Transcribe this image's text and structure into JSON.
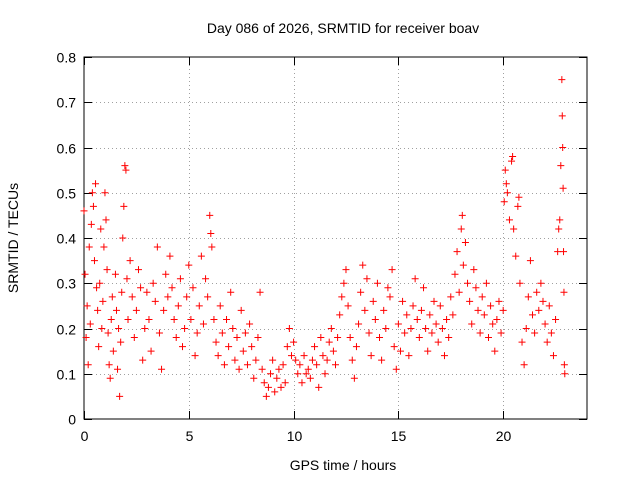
{
  "chart_data": {
    "type": "scatter",
    "title": "Day 086 of 2026, SRMTID for receiver boav",
    "xlabel": "GPS time / hours",
    "ylabel": "SRMTID / TECUs",
    "xlim": [
      0,
      24
    ],
    "ylim": [
      0,
      0.8
    ],
    "xticks": [
      0,
      5,
      10,
      15,
      20
    ],
    "yticks": [
      0,
      0.1,
      0.2,
      0.3,
      0.4,
      0.5,
      0.6,
      0.7,
      0.8
    ],
    "grid": true,
    "marker": "+",
    "color": "#ff0000",
    "series": [
      {
        "name": "SRMTID",
        "points": [
          [
            0.0,
            0.46
          ],
          [
            0.05,
            0.32
          ],
          [
            0.1,
            0.18
          ],
          [
            0.15,
            0.25
          ],
          [
            0.2,
            0.12
          ],
          [
            0.25,
            0.38
          ],
          [
            0.3,
            0.21
          ],
          [
            0.35,
            0.43
          ],
          [
            0.4,
            0.5
          ],
          [
            0.45,
            0.47
          ],
          [
            0.5,
            0.35
          ],
          [
            0.55,
            0.52
          ],
          [
            0.6,
            0.29
          ],
          [
            0.65,
            0.24
          ],
          [
            0.7,
            0.16
          ],
          [
            0.75,
            0.3
          ],
          [
            0.8,
            0.42
          ],
          [
            0.85,
            0.2
          ],
          [
            0.9,
            0.26
          ],
          [
            0.95,
            0.38
          ],
          [
            1.0,
            0.5
          ],
          [
            1.05,
            0.44
          ],
          [
            1.1,
            0.33
          ],
          [
            1.15,
            0.19
          ],
          [
            1.2,
            0.12
          ],
          [
            1.25,
            0.09
          ],
          [
            1.3,
            0.22
          ],
          [
            1.35,
            0.27
          ],
          [
            1.4,
            0.15
          ],
          [
            1.5,
            0.32
          ],
          [
            1.55,
            0.24
          ],
          [
            1.6,
            0.11
          ],
          [
            1.65,
            0.2
          ],
          [
            1.7,
            0.05
          ],
          [
            1.75,
            0.17
          ],
          [
            1.8,
            0.28
          ],
          [
            1.85,
            0.4
          ],
          [
            1.9,
            0.47
          ],
          [
            1.95,
            0.56
          ],
          [
            2.0,
            0.55
          ],
          [
            2.05,
            0.31
          ],
          [
            2.1,
            0.22
          ],
          [
            2.2,
            0.35
          ],
          [
            2.3,
            0.27
          ],
          [
            2.4,
            0.18
          ],
          [
            2.5,
            0.24
          ],
          [
            2.6,
            0.33
          ],
          [
            2.7,
            0.29
          ],
          [
            2.8,
            0.13
          ],
          [
            2.9,
            0.2
          ],
          [
            3.0,
            0.28
          ],
          [
            3.1,
            0.22
          ],
          [
            3.2,
            0.15
          ],
          [
            3.3,
            0.3
          ],
          [
            3.4,
            0.26
          ],
          [
            3.5,
            0.38
          ],
          [
            3.6,
            0.19
          ],
          [
            3.7,
            0.11
          ],
          [
            3.8,
            0.24
          ],
          [
            3.9,
            0.32
          ],
          [
            4.0,
            0.27
          ],
          [
            4.1,
            0.36
          ],
          [
            4.2,
            0.29
          ],
          [
            4.3,
            0.22
          ],
          [
            4.4,
            0.18
          ],
          [
            4.5,
            0.25
          ],
          [
            4.6,
            0.31
          ],
          [
            4.7,
            0.16
          ],
          [
            4.8,
            0.2
          ],
          [
            4.9,
            0.27
          ],
          [
            5.0,
            0.34
          ],
          [
            5.1,
            0.22
          ],
          [
            5.2,
            0.29
          ],
          [
            5.3,
            0.14
          ],
          [
            5.4,
            0.19
          ],
          [
            5.5,
            0.25
          ],
          [
            5.6,
            0.36
          ],
          [
            5.7,
            0.21
          ],
          [
            5.8,
            0.31
          ],
          [
            5.9,
            0.27
          ],
          [
            6.0,
            0.45
          ],
          [
            6.05,
            0.41
          ],
          [
            6.1,
            0.38
          ],
          [
            6.2,
            0.22
          ],
          [
            6.3,
            0.17
          ],
          [
            6.4,
            0.14
          ],
          [
            6.5,
            0.25
          ],
          [
            6.6,
            0.19
          ],
          [
            6.7,
            0.12
          ],
          [
            6.8,
            0.22
          ],
          [
            6.9,
            0.16
          ],
          [
            7.0,
            0.28
          ],
          [
            7.1,
            0.2
          ],
          [
            7.2,
            0.13
          ],
          [
            7.3,
            0.18
          ],
          [
            7.4,
            0.11
          ],
          [
            7.5,
            0.24
          ],
          [
            7.6,
            0.15
          ],
          [
            7.7,
            0.19
          ],
          [
            7.8,
            0.12
          ],
          [
            7.9,
            0.21
          ],
          [
            8.0,
            0.16
          ],
          [
            8.1,
            0.09
          ],
          [
            8.2,
            0.13
          ],
          [
            8.3,
            0.18
          ],
          [
            8.4,
            0.28
          ],
          [
            8.5,
            0.11
          ],
          [
            8.6,
            0.08
          ],
          [
            8.7,
            0.05
          ],
          [
            8.8,
            0.07
          ],
          [
            8.9,
            0.1
          ],
          [
            9.0,
            0.13
          ],
          [
            9.1,
            0.06
          ],
          [
            9.2,
            0.09
          ],
          [
            9.3,
            0.11
          ],
          [
            9.4,
            0.07
          ],
          [
            9.5,
            0.12
          ],
          [
            9.6,
            0.08
          ],
          [
            9.7,
            0.16
          ],
          [
            9.8,
            0.2
          ],
          [
            9.9,
            0.14
          ],
          [
            10.0,
            0.17
          ],
          [
            10.1,
            0.13
          ],
          [
            10.2,
            0.1
          ],
          [
            10.3,
            0.12
          ],
          [
            10.4,
            0.08
          ],
          [
            10.5,
            0.14
          ],
          [
            10.6,
            0.1
          ],
          [
            10.7,
            0.11
          ],
          [
            10.8,
            0.09
          ],
          [
            10.9,
            0.13
          ],
          [
            11.0,
            0.16
          ],
          [
            11.1,
            0.12
          ],
          [
            11.2,
            0.07
          ],
          [
            11.3,
            0.18
          ],
          [
            11.4,
            0.14
          ],
          [
            11.5,
            0.1
          ],
          [
            11.6,
            0.13
          ],
          [
            11.7,
            0.17
          ],
          [
            11.8,
            0.2
          ],
          [
            11.9,
            0.15
          ],
          [
            12.0,
            0.12
          ],
          [
            12.1,
            0.18
          ],
          [
            12.2,
            0.23
          ],
          [
            12.3,
            0.27
          ],
          [
            12.4,
            0.3
          ],
          [
            12.5,
            0.33
          ],
          [
            12.6,
            0.25
          ],
          [
            12.7,
            0.18
          ],
          [
            12.8,
            0.13
          ],
          [
            12.9,
            0.09
          ],
          [
            13.0,
            0.16
          ],
          [
            13.1,
            0.21
          ],
          [
            13.2,
            0.28
          ],
          [
            13.3,
            0.34
          ],
          [
            13.4,
            0.24
          ],
          [
            13.5,
            0.31
          ],
          [
            13.6,
            0.19
          ],
          [
            13.7,
            0.14
          ],
          [
            13.8,
            0.26
          ],
          [
            13.9,
            0.22
          ],
          [
            14.0,
            0.3
          ],
          [
            14.1,
            0.18
          ],
          [
            14.2,
            0.13
          ],
          [
            14.3,
            0.24
          ],
          [
            14.4,
            0.2
          ],
          [
            14.5,
            0.29
          ],
          [
            14.6,
            0.27
          ],
          [
            14.7,
            0.33
          ],
          [
            14.8,
            0.16
          ],
          [
            14.9,
            0.11
          ],
          [
            15.0,
            0.21
          ],
          [
            15.1,
            0.15
          ],
          [
            15.2,
            0.26
          ],
          [
            15.3,
            0.19
          ],
          [
            15.4,
            0.23
          ],
          [
            15.5,
            0.14
          ],
          [
            15.6,
            0.2
          ],
          [
            15.7,
            0.25
          ],
          [
            15.8,
            0.31
          ],
          [
            15.9,
            0.22
          ],
          [
            16.0,
            0.18
          ],
          [
            16.1,
            0.24
          ],
          [
            16.2,
            0.29
          ],
          [
            16.3,
            0.2
          ],
          [
            16.4,
            0.15
          ],
          [
            16.5,
            0.23
          ],
          [
            16.6,
            0.19
          ],
          [
            16.7,
            0.26
          ],
          [
            16.8,
            0.21
          ],
          [
            16.9,
            0.17
          ],
          [
            17.0,
            0.25
          ],
          [
            17.1,
            0.2
          ],
          [
            17.2,
            0.14
          ],
          [
            17.3,
            0.22
          ],
          [
            17.4,
            0.18
          ],
          [
            17.5,
            0.27
          ],
          [
            17.6,
            0.23
          ],
          [
            17.7,
            0.32
          ],
          [
            17.8,
            0.37
          ],
          [
            17.9,
            0.28
          ],
          [
            18.0,
            0.42
          ],
          [
            18.05,
            0.45
          ],
          [
            18.1,
            0.34
          ],
          [
            18.2,
            0.39
          ],
          [
            18.3,
            0.3
          ],
          [
            18.4,
            0.26
          ],
          [
            18.5,
            0.21
          ],
          [
            18.6,
            0.33
          ],
          [
            18.7,
            0.29
          ],
          [
            18.8,
            0.24
          ],
          [
            18.9,
            0.19
          ],
          [
            19.0,
            0.27
          ],
          [
            19.1,
            0.23
          ],
          [
            19.2,
            0.3
          ],
          [
            19.3,
            0.18
          ],
          [
            19.4,
            0.25
          ],
          [
            19.5,
            0.21
          ],
          [
            19.6,
            0.15
          ],
          [
            19.7,
            0.22
          ],
          [
            19.8,
            0.26
          ],
          [
            19.9,
            0.19
          ],
          [
            20.0,
            0.24
          ],
          [
            20.05,
            0.48
          ],
          [
            20.1,
            0.55
          ],
          [
            20.15,
            0.52
          ],
          [
            20.2,
            0.5
          ],
          [
            20.3,
            0.44
          ],
          [
            20.4,
            0.57
          ],
          [
            20.45,
            0.58
          ],
          [
            20.5,
            0.42
          ],
          [
            20.6,
            0.36
          ],
          [
            20.7,
            0.47
          ],
          [
            20.75,
            0.49
          ],
          [
            20.8,
            0.3
          ],
          [
            20.9,
            0.17
          ],
          [
            21.0,
            0.12
          ],
          [
            21.1,
            0.2
          ],
          [
            21.2,
            0.27
          ],
          [
            21.3,
            0.35
          ],
          [
            21.4,
            0.23
          ],
          [
            21.5,
            0.19
          ],
          [
            21.6,
            0.28
          ],
          [
            21.7,
            0.24
          ],
          [
            21.8,
            0.3
          ],
          [
            21.9,
            0.26
          ],
          [
            22.0,
            0.21
          ],
          [
            22.1,
            0.17
          ],
          [
            22.2,
            0.25
          ],
          [
            22.3,
            0.19
          ],
          [
            22.4,
            0.14
          ],
          [
            22.5,
            0.22
          ],
          [
            22.6,
            0.37
          ],
          [
            22.65,
            0.42
          ],
          [
            22.7,
            0.44
          ],
          [
            22.75,
            0.56
          ],
          [
            22.8,
            0.75
          ],
          [
            22.82,
            0.67
          ],
          [
            22.84,
            0.6
          ],
          [
            22.86,
            0.51
          ],
          [
            22.88,
            0.37
          ],
          [
            22.9,
            0.28
          ],
          [
            22.92,
            0.12
          ],
          [
            22.94,
            0.1
          ]
        ]
      }
    ]
  }
}
